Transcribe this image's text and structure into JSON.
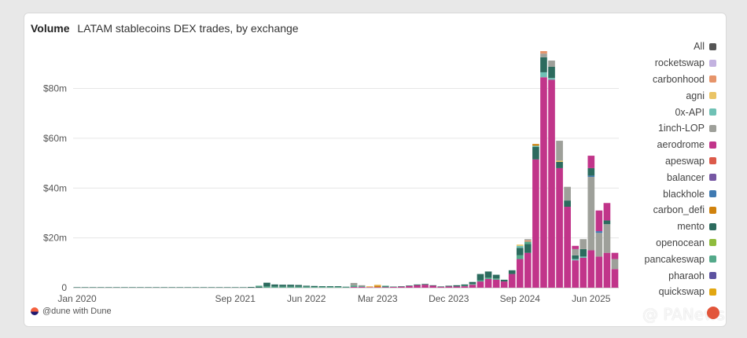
{
  "header": {
    "metric": "Volume",
    "subtitle": "LATAM stablecoins DEX trades, by exchange"
  },
  "footer": {
    "text": "@dune with Dune"
  },
  "watermark": {
    "text": "@ PANews"
  },
  "legend": {
    "items": [
      {
        "label": "All",
        "color": "#555555"
      },
      {
        "label": "rocketswap",
        "color": "#c3b2e0"
      },
      {
        "label": "carbonhood",
        "color": "#e6946a"
      },
      {
        "label": "agni",
        "color": "#eac465"
      },
      {
        "label": "0x-API",
        "color": "#6fc1b5"
      },
      {
        "label": "1inch-LOP",
        "color": "#9ea09a"
      },
      {
        "label": "aerodrome",
        "color": "#c1358a"
      },
      {
        "label": "apeswap",
        "color": "#dc5a4a"
      },
      {
        "label": "balancer",
        "color": "#7657a3"
      },
      {
        "label": "blackhole",
        "color": "#3f7ab2"
      },
      {
        "label": "carbon_defi",
        "color": "#d0820d"
      },
      {
        "label": "mento",
        "color": "#2c6b5e"
      },
      {
        "label": "openocean",
        "color": "#8fbc3d"
      },
      {
        "label": "pancakeswap",
        "color": "#54a98a"
      },
      {
        "label": "pharaoh",
        "color": "#5c52a0"
      },
      {
        "label": "quickswap",
        "color": "#e2a712"
      }
    ]
  },
  "chart_data": {
    "type": "bar",
    "stacked": true,
    "ylabel": "",
    "xlabel": "",
    "ylim": [
      0,
      95
    ],
    "y_unit": "$m",
    "y_ticks": [
      "0",
      "$20m",
      "$40m",
      "$60m",
      "$80m"
    ],
    "y_tick_values": [
      0,
      20,
      40,
      60,
      80
    ],
    "x_ticks": [
      "Jan 2020",
      "Sep 2021",
      "Jun 2022",
      "Mar 2023",
      "Dec 2023",
      "Sep 2024",
      "Jun 2025"
    ],
    "x_tick_months": [
      "2020-01",
      "2021-09",
      "2022-06",
      "2023-03",
      "2023-12",
      "2024-09",
      "2025-06"
    ],
    "grid": true,
    "legend_position": "right",
    "bars": [
      {
        "month": "2020-01",
        "segments": {
          "mento": 0.2
        }
      },
      {
        "month": "2020-02",
        "segments": {
          "mento": 0.2
        }
      },
      {
        "month": "2020-03",
        "segments": {
          "mento": 0.2
        }
      },
      {
        "month": "2020-04",
        "segments": {
          "mento": 0.2
        }
      },
      {
        "month": "2020-05",
        "segments": {
          "mento": 0.2
        }
      },
      {
        "month": "2020-06",
        "segments": {
          "mento": 0.2
        }
      },
      {
        "month": "2020-07",
        "segments": {
          "mento": 0.2
        }
      },
      {
        "month": "2020-08",
        "segments": {
          "mento": 0.2
        }
      },
      {
        "month": "2020-09",
        "segments": {
          "mento": 0.2
        }
      },
      {
        "month": "2020-10",
        "segments": {
          "mento": 0.2
        }
      },
      {
        "month": "2020-11",
        "segments": {
          "mento": 0.2
        }
      },
      {
        "month": "2020-12",
        "segments": {
          "mento": 0.2
        }
      },
      {
        "month": "2021-01",
        "segments": {
          "mento": 0.2
        }
      },
      {
        "month": "2021-02",
        "segments": {
          "mento": 0.2
        }
      },
      {
        "month": "2021-03",
        "segments": {
          "mento": 0.2
        }
      },
      {
        "month": "2021-04",
        "segments": {
          "mento": 0.2
        }
      },
      {
        "month": "2021-05",
        "segments": {
          "mento": 0.2
        }
      },
      {
        "month": "2021-06",
        "segments": {
          "mento": 0.2
        }
      },
      {
        "month": "2021-07",
        "segments": {
          "mento": 0.2
        }
      },
      {
        "month": "2021-08",
        "segments": {
          "mento": 0.2
        }
      },
      {
        "month": "2021-09",
        "segments": {
          "mento": 0.2
        }
      },
      {
        "month": "2021-10",
        "segments": {
          "mento": 0.2
        }
      },
      {
        "month": "2021-11",
        "segments": {
          "mento": 0.3
        }
      },
      {
        "month": "2021-12",
        "segments": {
          "mento": 0.4,
          "pancakeswap": 0.4
        }
      },
      {
        "month": "2022-01",
        "segments": {
          "pancakeswap": 0.5,
          "mento": 1.5
        }
      },
      {
        "month": "2022-02",
        "segments": {
          "pancakeswap": 0.4,
          "mento": 0.9
        }
      },
      {
        "month": "2022-03",
        "segments": {
          "pancakeswap": 0.4,
          "mento": 0.8
        }
      },
      {
        "month": "2022-04",
        "segments": {
          "pancakeswap": 0.4,
          "mento": 0.8
        }
      },
      {
        "month": "2022-05",
        "segments": {
          "pancakeswap": 0.4,
          "mento": 0.7
        }
      },
      {
        "month": "2022-06",
        "segments": {
          "pancakeswap": 0.4,
          "mento": 0.4
        }
      },
      {
        "month": "2022-07",
        "segments": {
          "pancakeswap": 0.3,
          "mento": 0.4
        }
      },
      {
        "month": "2022-08",
        "segments": {
          "pancakeswap": 0.3,
          "mento": 0.3
        }
      },
      {
        "month": "2022-09",
        "segments": {
          "pancakeswap": 0.3,
          "mento": 0.3
        }
      },
      {
        "month": "2022-10",
        "segments": {
          "pancakeswap": 0.3,
          "mento": 0.3
        }
      },
      {
        "month": "2022-11",
        "segments": {
          "pancakeswap": 0.2,
          "mento": 0.2
        }
      },
      {
        "month": "2022-12",
        "segments": {
          "aerodrome": 0.3,
          "pancakeswap": 0.6,
          "1inch-LOP": 1.0
        }
      },
      {
        "month": "2023-01",
        "segments": {
          "aerodrome": 0.3,
          "pancakeswap": 0.3,
          "1inch-LOP": 0.4
        }
      },
      {
        "month": "2023-02",
        "segments": {
          "aerodrome": 0.2,
          "agni": 0.4
        }
      },
      {
        "month": "2023-03",
        "segments": {
          "aerodrome": 0.2,
          "carbon_defi": 0.6,
          "agni": 0.4
        }
      },
      {
        "month": "2023-04",
        "segments": {
          "aerodrome": 0.2,
          "mento": 0.3,
          "pancakeswap": 0.3
        }
      },
      {
        "month": "2023-05",
        "segments": {
          "aerodrome": 0.3,
          "pancakeswap": 0.2
        }
      },
      {
        "month": "2023-06",
        "segments": {
          "aerodrome": 0.4,
          "mento": 0.2
        }
      },
      {
        "month": "2023-07",
        "segments": {
          "aerodrome": 0.7,
          "mento": 0.2
        }
      },
      {
        "month": "2023-08",
        "segments": {
          "aerodrome": 1.0,
          "mento": 0.3
        }
      },
      {
        "month": "2023-09",
        "segments": {
          "aerodrome": 1.2,
          "mento": 0.3
        }
      },
      {
        "month": "2023-10",
        "segments": {
          "aerodrome": 0.8,
          "mento": 0.2
        }
      },
      {
        "month": "2023-11",
        "segments": {
          "aerodrome": 0.3,
          "mento": 0.2
        }
      },
      {
        "month": "2023-12",
        "segments": {
          "aerodrome": 0.5,
          "mento": 0.3
        }
      },
      {
        "month": "2024-01",
        "segments": {
          "aerodrome": 0.5,
          "mento": 0.5
        }
      },
      {
        "month": "2024-02",
        "segments": {
          "aerodrome": 0.6,
          "pancakeswap": 0.2,
          "mento": 0.5
        }
      },
      {
        "month": "2024-03",
        "segments": {
          "aerodrome": 1.2,
          "pancakeswap": 0.3,
          "mento": 0.8
        }
      },
      {
        "month": "2024-04",
        "segments": {
          "aerodrome": 2.5,
          "pancakeswap": 0.5,
          "mento": 2.5
        }
      },
      {
        "month": "2024-05",
        "segments": {
          "aerodrome": 3.5,
          "pancakeswap": 0.5,
          "mento": 2.5
        }
      },
      {
        "month": "2024-06",
        "segments": {
          "aerodrome": 3.2,
          "pancakeswap": 0.5,
          "mento": 1.5
        }
      },
      {
        "month": "2024-07",
        "segments": {
          "aerodrome": 2.5,
          "mento": 0.7
        }
      },
      {
        "month": "2024-08",
        "segments": {
          "aerodrome": 5.5,
          "mento": 1.5
        }
      },
      {
        "month": "2024-09",
        "segments": {
          "aerodrome": 11.5,
          "pancakeswap": 1.5,
          "mento": 3.0,
          "0x-API": 0.8,
          "agni": 0.5
        }
      },
      {
        "month": "2024-10",
        "segments": {
          "aerodrome": 14.0,
          "mento": 3.5,
          "pancakeswap": 1.0,
          "carbonhood": 0.5,
          "1inch-LOP": 0.5
        }
      },
      {
        "month": "2024-11",
        "segments": {
          "aerodrome": 51.5,
          "mento": 5.0,
          "0x-API": 0.5,
          "carbon_defi": 0.7
        }
      },
      {
        "month": "2024-12",
        "segments": {
          "aerodrome": 84.5,
          "0x-API": 2.0,
          "mento": 6.0,
          "1inch-LOP": 1.5,
          "carbonhood": 1.0
        }
      },
      {
        "month": "2025-01",
        "segments": {
          "aerodrome": 83.5,
          "0x-API": 0.7,
          "mento": 4.5,
          "1inch-LOP": 2.5
        }
      },
      {
        "month": "2025-02",
        "segments": {
          "aerodrome": 48.0,
          "mento": 2.5,
          "agni": 0.5,
          "1inch-LOP": 8.0
        }
      },
      {
        "month": "2025-03",
        "segments": {
          "aerodrome": 32.5,
          "mento": 2.5,
          "1inch-LOP": 5.5
        }
      },
      {
        "month": "2025-04",
        "segments": {
          "aerodrome": 11.0,
          "0x-API": 0.5,
          "mento": 1.5,
          "1inch-LOP": 2.5,
          "aerodrome_top": 1.3
        }
      },
      {
        "month": "2025-05",
        "segments": {
          "aerodrome": 12.0,
          "0x-API": 0.5,
          "mento": 3.0,
          "1inch-LOP": 4.0
        }
      },
      {
        "month": "2025-06",
        "segments": {
          "aerodrome": 15.0,
          "1inch-LOP": 29.5,
          "blackhole": 0.5,
          "mento": 3.0,
          "aerodrome_top": 5.0
        }
      },
      {
        "month": "2025-07",
        "segments": {
          "aerodrome": 12.5,
          "1inch-LOP": 9.5,
          "blackhole": 0.7,
          "aerodrome_top": 8.3
        }
      },
      {
        "month": "2025-08",
        "segments": {
          "aerodrome": 14.0,
          "1inch-LOP": 11.5,
          "mento": 1.5,
          "aerodrome_top": 7.0
        }
      },
      {
        "month": "2025-09",
        "segments": {
          "aerodrome": 7.5,
          "1inch-LOP": 4.0,
          "aerodrome_top": 2.5
        }
      }
    ]
  }
}
